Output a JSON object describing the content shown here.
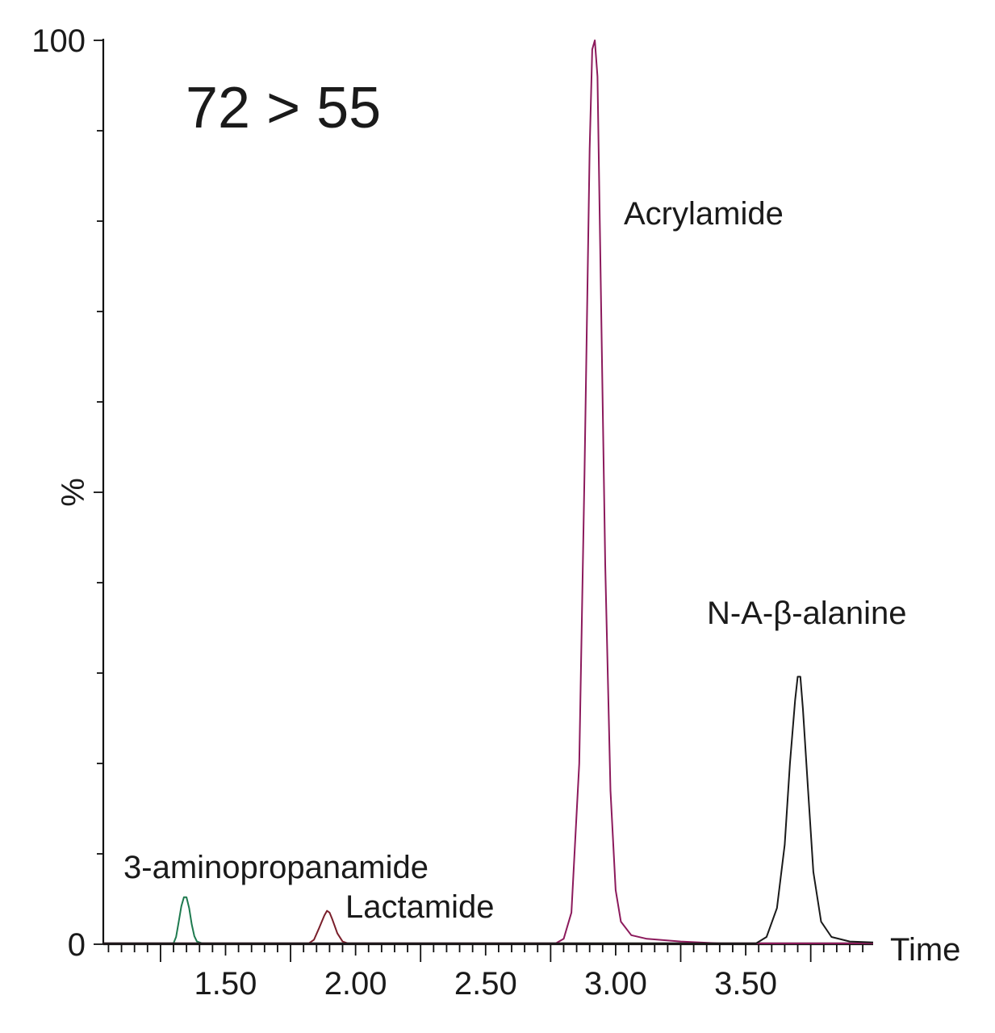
{
  "chart_data": {
    "type": "line",
    "title": "72 > 55",
    "xlabel": "Time",
    "ylabel": "%",
    "xlim": [
      1.03,
      3.99
    ],
    "ylim": [
      0,
      100
    ],
    "x_ticks": [
      "1.50",
      "2.00",
      "2.50",
      "3.00",
      "3.50"
    ],
    "x_tick_values": [
      1.5,
      2.0,
      2.5,
      3.0,
      3.5
    ],
    "y_ticks": [
      "0",
      "100"
    ],
    "y_tick_values": [
      0,
      100
    ],
    "series": [
      {
        "name": "3-aminopropanamide",
        "color": "#1e7a4f",
        "points": [
          [
            1.03,
            0.1
          ],
          [
            1.3,
            0.1
          ],
          [
            1.31,
            0.8
          ],
          [
            1.32,
            2.5
          ],
          [
            1.33,
            4.2
          ],
          [
            1.34,
            5.2
          ],
          [
            1.35,
            5.2
          ],
          [
            1.36,
            4.0
          ],
          [
            1.37,
            2.2
          ],
          [
            1.38,
            0.9
          ],
          [
            1.39,
            0.3
          ],
          [
            1.41,
            0.1
          ],
          [
            3.99,
            0.1
          ]
        ]
      },
      {
        "name": "Lactamide",
        "color": "#7a1f2b",
        "points": [
          [
            1.03,
            0.1
          ],
          [
            1.82,
            0.1
          ],
          [
            1.84,
            0.5
          ],
          [
            1.86,
            1.8
          ],
          [
            1.88,
            3.2
          ],
          [
            1.89,
            3.7
          ],
          [
            1.9,
            3.5
          ],
          [
            1.91,
            2.8
          ],
          [
            1.93,
            1.2
          ],
          [
            1.95,
            0.3
          ],
          [
            1.97,
            0.1
          ],
          [
            3.99,
            0.1
          ]
        ]
      },
      {
        "name": "Acrylamide",
        "color": "#8c1a5c",
        "points": [
          [
            1.03,
            0.1
          ],
          [
            2.77,
            0.1
          ],
          [
            2.8,
            0.6
          ],
          [
            2.83,
            3.5
          ],
          [
            2.86,
            20
          ],
          [
            2.88,
            52
          ],
          [
            2.9,
            88
          ],
          [
            2.91,
            99
          ],
          [
            2.92,
            100
          ],
          [
            2.93,
            96
          ],
          [
            2.94,
            78
          ],
          [
            2.96,
            42
          ],
          [
            2.98,
            17
          ],
          [
            3.0,
            6
          ],
          [
            3.02,
            2.5
          ],
          [
            3.06,
            1.0
          ],
          [
            3.12,
            0.6
          ],
          [
            3.25,
            0.3
          ],
          [
            3.4,
            0.1
          ],
          [
            3.99,
            0.1
          ]
        ]
      },
      {
        "name": "N-A-β-alanine",
        "color": "#1a1a1a",
        "points": [
          [
            1.03,
            0.1
          ],
          [
            3.54,
            0.1
          ],
          [
            3.58,
            0.8
          ],
          [
            3.62,
            4
          ],
          [
            3.65,
            11
          ],
          [
            3.67,
            20
          ],
          [
            3.69,
            27
          ],
          [
            3.7,
            29.6
          ],
          [
            3.71,
            29.6
          ],
          [
            3.72,
            26
          ],
          [
            3.74,
            17
          ],
          [
            3.76,
            8
          ],
          [
            3.79,
            2.5
          ],
          [
            3.83,
            0.8
          ],
          [
            3.9,
            0.3
          ],
          [
            3.99,
            0.2
          ]
        ]
      }
    ],
    "annotations": [
      "3-aminopropanamide",
      "Lactamide",
      "Acrylamide",
      "N-A-β-alanine"
    ],
    "grid": false,
    "legend": "none"
  }
}
